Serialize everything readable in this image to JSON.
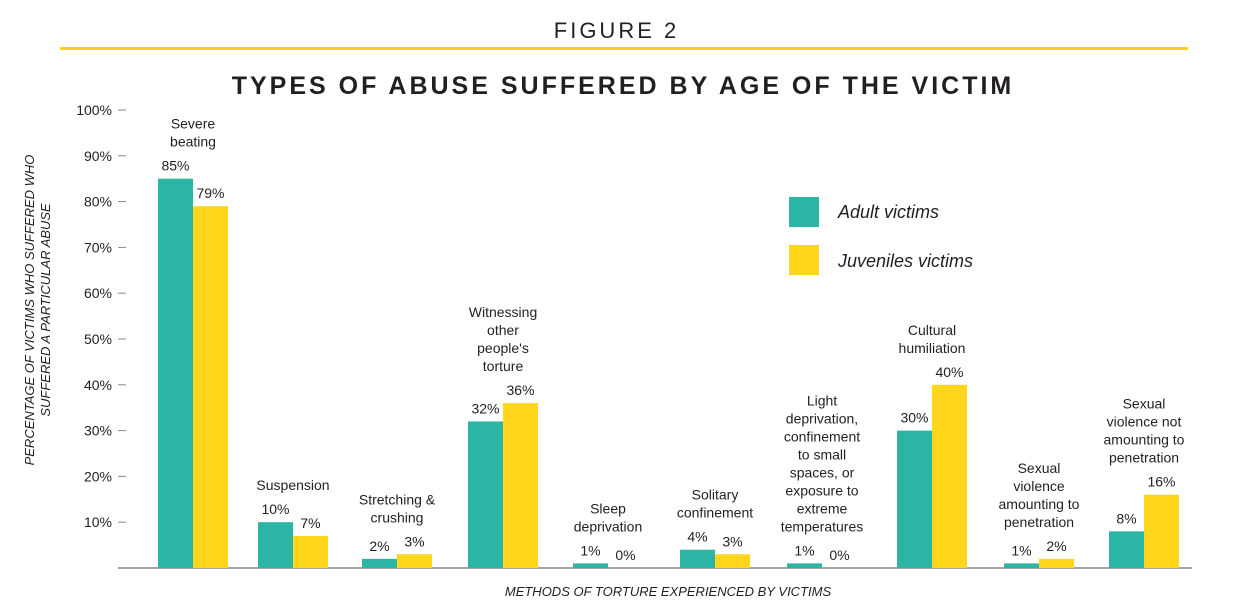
{
  "figure_label": "FIGURE 2",
  "colors": {
    "adult": "#2ab5a5",
    "juvenile": "#ffd61c",
    "rule": "#f5d31b",
    "axis": "#888888"
  },
  "chart_data": {
    "type": "bar",
    "title": "TYPES OF ABUSE SUFFERED BY AGE OF THE VICTIM",
    "ylabel": "PERCENTAGE OF VICTIMS WHO SUFFERED WHO SUFFERED A PARTICULAR ABUSE",
    "ylabel_lines": [
      "PERCENTAGE OF VICTIMS WHO SUFFERED WHO",
      "SUFFERED A PARTICULAR ABUSE"
    ],
    "xlabel": "METHODS OF TORTURE EXPERIENCED BY VICTIMS",
    "ylim": [
      0,
      100
    ],
    "yticks": [
      "10%",
      "20%",
      "30%",
      "40%",
      "50%",
      "60%",
      "70%",
      "80%",
      "90%",
      "100%"
    ],
    "legend_position": "right",
    "categories": [
      [
        "Severe",
        "beating"
      ],
      [
        "Suspension"
      ],
      [
        "Stretching &",
        "crushing"
      ],
      [
        "Witnessing",
        "other",
        "people's",
        "torture"
      ],
      [
        "Sleep",
        "deprivation"
      ],
      [
        "Solitary",
        "confinement"
      ],
      [
        "Light",
        "deprivation,",
        "confinement",
        "to small",
        "spaces, or",
        "exposure to",
        "extreme",
        "temperatures"
      ],
      [
        "Cultural",
        "humiliation"
      ],
      [
        "Sexual",
        "violence",
        "amounting to",
        "penetration"
      ],
      [
        "Sexual",
        "violence not",
        "amounting to",
        "penetration"
      ]
    ],
    "series": [
      {
        "name": "Adult victims",
        "values": [
          85,
          10,
          2,
          32,
          1,
          4,
          1,
          30,
          1,
          8
        ],
        "labels": [
          "85%",
          "10%",
          "2%",
          "32%",
          "1%",
          "4%",
          "1%",
          "30%",
          "1%",
          "8%"
        ]
      },
      {
        "name": "Juveniles victims",
        "values": [
          79,
          7,
          3,
          36,
          0,
          3,
          0,
          40,
          2,
          16
        ],
        "labels": [
          "79%",
          "7%",
          "3%",
          "36%",
          "0%",
          "3%",
          "0%",
          "40%",
          "2%",
          "16%"
        ]
      }
    ]
  }
}
